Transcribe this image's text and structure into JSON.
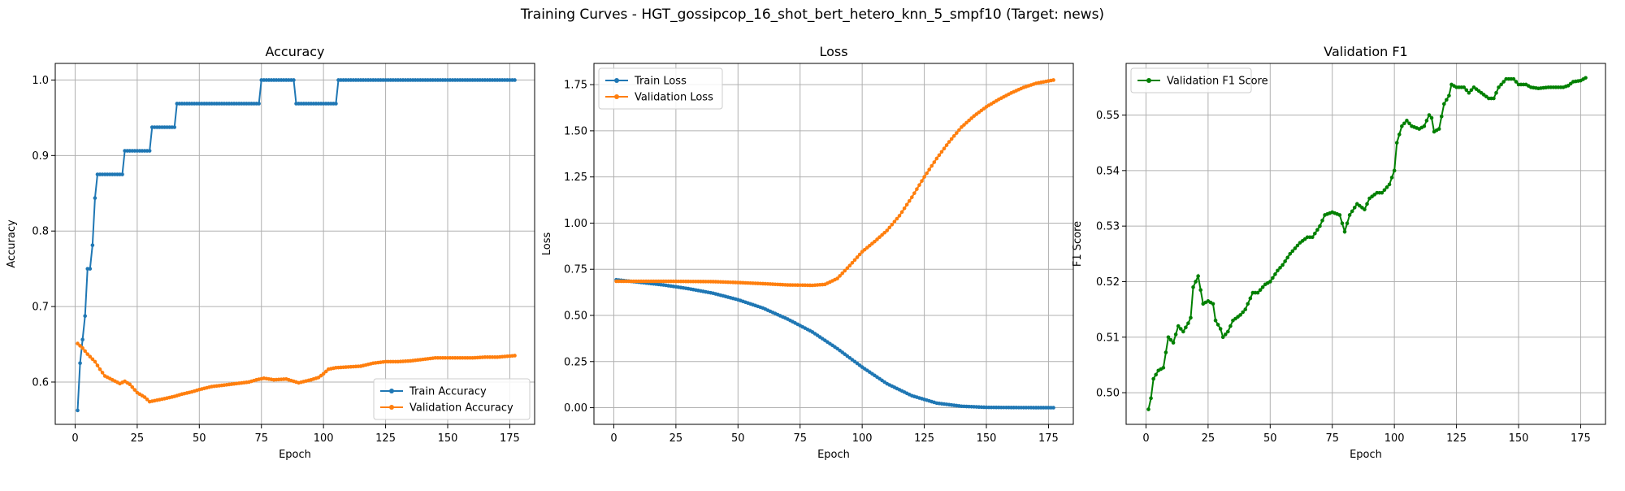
{
  "figure": {
    "title": "Training Curves - HGT_gossipcop_16_shot_bert_hetero_knn_5_smpf10 (Target: news)"
  },
  "colors": {
    "blue": "#1f77b4",
    "orange": "#ff7f0e",
    "green": "#008000",
    "grid": "#b0b0b0",
    "axis": "#000000"
  },
  "chart_data": [
    {
      "type": "line",
      "title": "Accuracy",
      "xlabel": "Epoch",
      "ylabel": "Accuracy",
      "xlim": [
        -8,
        185
      ],
      "ylim": [
        0.544,
        1.022
      ],
      "xticks": [
        0,
        25,
        50,
        75,
        100,
        125,
        150,
        175
      ],
      "yticks": [
        0.6,
        0.7,
        0.8,
        0.9,
        1.0
      ],
      "ytick_labels": [
        "0.6",
        "0.7",
        "0.8",
        "0.9",
        "1.0"
      ],
      "grid": true,
      "legend_position": "lower-right",
      "series": [
        {
          "name": "Train Accuracy",
          "color": "#1f77b4",
          "x_start": 1,
          "x_end": 177,
          "points": [
            [
              1,
              0.5625
            ],
            [
              2,
              0.625
            ],
            [
              3,
              0.65625
            ],
            [
              4,
              0.6875
            ],
            [
              5,
              0.75
            ],
            [
              6,
              0.75
            ],
            [
              7,
              0.78125
            ],
            [
              8,
              0.84375
            ],
            [
              9,
              0.875
            ],
            [
              19,
              0.875
            ],
            [
              20,
              0.90625
            ],
            [
              30,
              0.90625
            ],
            [
              31,
              0.9375
            ],
            [
              40,
              0.9375
            ],
            [
              41,
              0.96875
            ],
            [
              74,
              0.96875
            ],
            [
              75,
              1.0
            ],
            [
              88,
              1.0
            ],
            [
              89,
              0.96875
            ],
            [
              105,
              0.96875
            ],
            [
              106,
              1.0
            ],
            [
              177,
              1.0
            ]
          ]
        },
        {
          "name": "Validation Accuracy",
          "color": "#ff7f0e",
          "x_start": 1,
          "x_end": 177,
          "points": [
            [
              1,
              0.651
            ],
            [
              3,
              0.645
            ],
            [
              5,
              0.637
            ],
            [
              8,
              0.627
            ],
            [
              10,
              0.617
            ],
            [
              12,
              0.608
            ],
            [
              15,
              0.603
            ],
            [
              18,
              0.598
            ],
            [
              20,
              0.601
            ],
            [
              22,
              0.597
            ],
            [
              25,
              0.586
            ],
            [
              28,
              0.58
            ],
            [
              30,
              0.574
            ],
            [
              33,
              0.576
            ],
            [
              36,
              0.578
            ],
            [
              40,
              0.581
            ],
            [
              43,
              0.584
            ],
            [
              47,
              0.587
            ],
            [
              50,
              0.59
            ],
            [
              55,
              0.594
            ],
            [
              60,
              0.596
            ],
            [
              65,
              0.598
            ],
            [
              70,
              0.6
            ],
            [
              73,
              0.603
            ],
            [
              76,
              0.605
            ],
            [
              80,
              0.603
            ],
            [
              85,
              0.604
            ],
            [
              88,
              0.601
            ],
            [
              90,
              0.599
            ],
            [
              95,
              0.603
            ],
            [
              98,
              0.606
            ],
            [
              100,
              0.611
            ],
            [
              102,
              0.617
            ],
            [
              105,
              0.619
            ],
            [
              110,
              0.62
            ],
            [
              115,
              0.621
            ],
            [
              120,
              0.625
            ],
            [
              125,
              0.627
            ],
            [
              130,
              0.627
            ],
            [
              135,
              0.628
            ],
            [
              140,
              0.63
            ],
            [
              145,
              0.632
            ],
            [
              150,
              0.632
            ],
            [
              155,
              0.632
            ],
            [
              160,
              0.632
            ],
            [
              165,
              0.633
            ],
            [
              170,
              0.633
            ],
            [
              177,
              0.635
            ]
          ]
        }
      ]
    },
    {
      "type": "line",
      "title": "Loss",
      "xlabel": "Epoch",
      "ylabel": "Loss",
      "xlim": [
        -8,
        185
      ],
      "ylim": [
        -0.09,
        1.865
      ],
      "xticks": [
        0,
        25,
        50,
        75,
        100,
        125,
        150,
        175
      ],
      "yticks": [
        0.0,
        0.25,
        0.5,
        0.75,
        1.0,
        1.25,
        1.5,
        1.75
      ],
      "ytick_labels": [
        "0.00",
        "0.25",
        "0.50",
        "0.75",
        "1.00",
        "1.25",
        "1.50",
        "1.75"
      ],
      "grid": true,
      "legend_position": "upper-left",
      "series": [
        {
          "name": "Train Loss",
          "color": "#1f77b4",
          "x_start": 1,
          "x_end": 177,
          "points": [
            [
              1,
              0.693
            ],
            [
              10,
              0.68
            ],
            [
              20,
              0.665
            ],
            [
              30,
              0.645
            ],
            [
              40,
              0.62
            ],
            [
              50,
              0.585
            ],
            [
              60,
              0.54
            ],
            [
              70,
              0.48
            ],
            [
              80,
              0.41
            ],
            [
              90,
              0.32
            ],
            [
              100,
              0.22
            ],
            [
              110,
              0.13
            ],
            [
              120,
              0.065
            ],
            [
              130,
              0.025
            ],
            [
              140,
              0.008
            ],
            [
              150,
              0.002
            ],
            [
              160,
              0.001
            ],
            [
              170,
              0.0005
            ],
            [
              177,
              0.0003
            ]
          ]
        },
        {
          "name": "Validation Loss",
          "color": "#ff7f0e",
          "x_start": 1,
          "x_end": 177,
          "points": [
            [
              1,
              0.685
            ],
            [
              20,
              0.685
            ],
            [
              40,
              0.683
            ],
            [
              50,
              0.678
            ],
            [
              60,
              0.672
            ],
            [
              70,
              0.665
            ],
            [
              80,
              0.663
            ],
            [
              85,
              0.668
            ],
            [
              90,
              0.7
            ],
            [
              95,
              0.77
            ],
            [
              100,
              0.845
            ],
            [
              105,
              0.9
            ],
            [
              110,
              0.96
            ],
            [
              115,
              1.04
            ],
            [
              120,
              1.14
            ],
            [
              125,
              1.25
            ],
            [
              130,
              1.35
            ],
            [
              135,
              1.44
            ],
            [
              140,
              1.52
            ],
            [
              145,
              1.58
            ],
            [
              150,
              1.63
            ],
            [
              155,
              1.67
            ],
            [
              160,
              1.705
            ],
            [
              165,
              1.735
            ],
            [
              170,
              1.757
            ],
            [
              177,
              1.775
            ]
          ]
        }
      ]
    },
    {
      "type": "line",
      "title": "Validation F1",
      "xlabel": "Epoch",
      "ylabel": "F1 Score",
      "xlim": [
        -8,
        185
      ],
      "ylim": [
        0.4943,
        0.5593
      ],
      "xticks": [
        0,
        25,
        50,
        75,
        100,
        125,
        150,
        175
      ],
      "yticks": [
        0.5,
        0.51,
        0.52,
        0.53,
        0.54,
        0.55
      ],
      "ytick_labels": [
        "0.50",
        "0.51",
        "0.52",
        "0.53",
        "0.54",
        "0.55"
      ],
      "grid": true,
      "legend_position": "upper-left",
      "series": [
        {
          "name": "Validation F1 Score",
          "color": "#008000",
          "x_start": 1,
          "x_end": 177,
          "points": [
            [
              1,
              0.497
            ],
            [
              2,
              0.499
            ],
            [
              3,
              0.5025
            ],
            [
              5,
              0.504
            ],
            [
              7,
              0.5045
            ],
            [
              9,
              0.51
            ],
            [
              11,
              0.509
            ],
            [
              13,
              0.512
            ],
            [
              15,
              0.511
            ],
            [
              17,
              0.5125
            ],
            [
              18,
              0.5135
            ],
            [
              19,
              0.519
            ],
            [
              20,
              0.52
            ],
            [
              21,
              0.521
            ],
            [
              22,
              0.5185
            ],
            [
              23,
              0.516
            ],
            [
              25,
              0.5165
            ],
            [
              27,
              0.516
            ],
            [
              28,
              0.513
            ],
            [
              30,
              0.5115
            ],
            [
              31,
              0.51
            ],
            [
              33,
              0.511
            ],
            [
              35,
              0.513
            ],
            [
              38,
              0.514
            ],
            [
              40,
              0.515
            ],
            [
              43,
              0.518
            ],
            [
              45,
              0.518
            ],
            [
              48,
              0.5195
            ],
            [
              50,
              0.52
            ],
            [
              53,
              0.522
            ],
            [
              55,
              0.523
            ],
            [
              58,
              0.525
            ],
            [
              60,
              0.526
            ],
            [
              62,
              0.527
            ],
            [
              65,
              0.528
            ],
            [
              67,
              0.528
            ],
            [
              70,
              0.53
            ],
            [
              72,
              0.532
            ],
            [
              75,
              0.5325
            ],
            [
              78,
              0.532
            ],
            [
              80,
              0.529
            ],
            [
              82,
              0.532
            ],
            [
              85,
              0.534
            ],
            [
              88,
              0.533
            ],
            [
              90,
              0.535
            ],
            [
              93,
              0.536
            ],
            [
              95,
              0.536
            ],
            [
              98,
              0.5375
            ],
            [
              100,
              0.54
            ],
            [
              101,
              0.545
            ],
            [
              103,
              0.548
            ],
            [
              105,
              0.549
            ],
            [
              107,
              0.548
            ],
            [
              110,
              0.5475
            ],
            [
              112,
              0.548
            ],
            [
              114,
              0.55
            ],
            [
              115,
              0.5495
            ],
            [
              116,
              0.547
            ],
            [
              118,
              0.5475
            ],
            [
              120,
              0.552
            ],
            [
              122,
              0.5535
            ],
            [
              123,
              0.5555
            ],
            [
              125,
              0.555
            ],
            [
              128,
              0.555
            ],
            [
              130,
              0.554
            ],
            [
              132,
              0.555
            ],
            [
              135,
              0.554
            ],
            [
              138,
              0.553
            ],
            [
              140,
              0.553
            ],
            [
              142,
              0.555
            ],
            [
              145,
              0.5565
            ],
            [
              148,
              0.5565
            ],
            [
              150,
              0.5555
            ],
            [
              153,
              0.5555
            ],
            [
              155,
              0.555
            ],
            [
              158,
              0.5548
            ],
            [
              162,
              0.555
            ],
            [
              165,
              0.555
            ],
            [
              168,
              0.555
            ],
            [
              170,
              0.5553
            ],
            [
              172,
              0.556
            ],
            [
              175,
              0.5562
            ],
            [
              177,
              0.5567
            ]
          ]
        }
      ]
    }
  ]
}
